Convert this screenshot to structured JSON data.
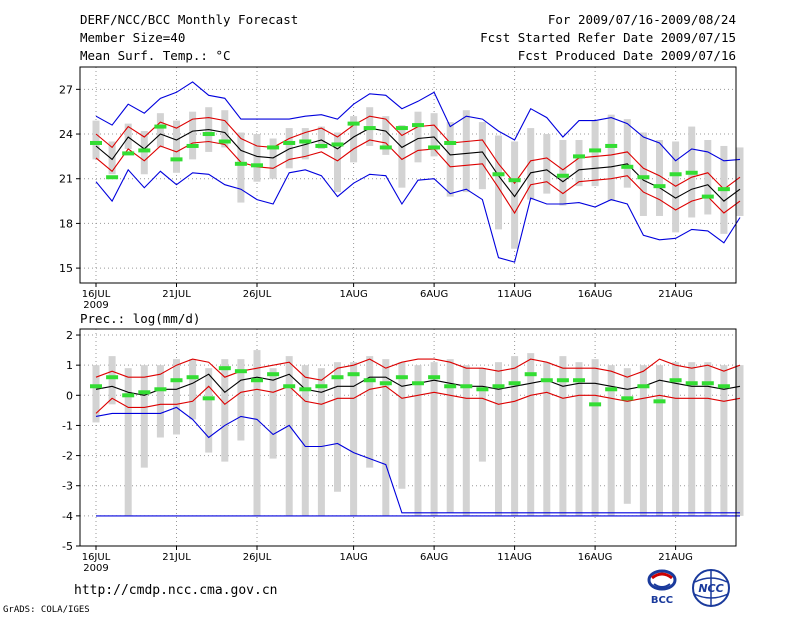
{
  "header": {
    "title": "DERF/NCC/BCC Monthly Forecast",
    "member_size": "Member Size=40",
    "variable": "Mean Surf. Temp.: °C",
    "for_period": "For 2009/07/16-2009/08/24",
    "started": "Fcst Started Refer Date 2009/07/15",
    "produced": "Fcst Produced Date 2009/07/16"
  },
  "footer": {
    "url": "http://cmdp.ncc.cma.gov.cn",
    "credit": "GrADS: COLA/IGES",
    "logo_left_text": "BCC",
    "logo_right_text": "NCC"
  },
  "colors": {
    "box": "#d3d3d3",
    "obs": "#33dd33",
    "mean": "#000000",
    "sd_band": "#dd0000",
    "extreme": "#0000dd",
    "grid": "#999999"
  },
  "chart_data": [
    {
      "type": "line",
      "title": "Mean Surf. Temp.: °C",
      "ylim": [
        14,
        28.5
      ],
      "yticks": [
        15,
        18,
        21,
        24,
        27
      ],
      "xlim": [
        0,
        40
      ],
      "x_ticks": [
        {
          "x": 0,
          "label": "16JUL",
          "sub": "2009"
        },
        {
          "x": 5,
          "label": "21JUL",
          "sub": ""
        },
        {
          "x": 10,
          "label": "26JUL",
          "sub": ""
        },
        {
          "x": 16,
          "label": "1AUG",
          "sub": ""
        },
        {
          "x": 21,
          "label": "6AUG",
          "sub": ""
        },
        {
          "x": 26,
          "label": "11AUG",
          "sub": ""
        },
        {
          "x": 31,
          "label": "16AUG",
          "sub": ""
        },
        {
          "x": 36,
          "label": "21AUG",
          "sub": ""
        }
      ],
      "series": [
        {
          "name": "ensemble mean",
          "values": [
            23.2,
            22.3,
            23.8,
            23.0,
            24.0,
            23.6,
            24.2,
            24.3,
            24.1,
            22.9,
            22.5,
            22.4,
            23.0,
            23.3,
            23.6,
            23.0,
            23.8,
            24.4,
            24.2,
            23.1,
            23.7,
            23.8,
            22.6,
            22.7,
            22.8,
            21.2,
            19.8,
            21.4,
            21.6,
            20.8,
            21.6,
            21.7,
            21.8,
            22.0,
            20.9,
            20.4,
            19.7,
            20.3,
            20.6,
            19.5,
            20.3
          ]
        },
        {
          "name": "mean + 1 sd",
          "values": [
            24.0,
            23.1,
            24.5,
            23.8,
            24.8,
            24.4,
            25.0,
            25.1,
            24.9,
            23.7,
            23.2,
            23.1,
            23.7,
            24.1,
            24.4,
            23.8,
            24.6,
            25.2,
            25.0,
            23.9,
            24.5,
            24.6,
            23.4,
            23.5,
            23.6,
            22.0,
            20.7,
            22.2,
            22.4,
            21.6,
            22.4,
            22.5,
            22.6,
            22.8,
            21.7,
            21.2,
            20.5,
            21.1,
            21.4,
            20.3,
            21.1
          ]
        },
        {
          "name": "mean - 1 sd",
          "values": [
            22.4,
            21.5,
            23.0,
            22.2,
            23.2,
            22.8,
            23.4,
            23.5,
            23.3,
            22.1,
            21.8,
            21.7,
            22.3,
            22.5,
            22.8,
            22.2,
            23.0,
            23.6,
            23.4,
            22.3,
            22.9,
            23.0,
            21.8,
            21.9,
            22.0,
            20.4,
            18.7,
            20.6,
            20.8,
            20.0,
            20.8,
            20.9,
            21.0,
            21.2,
            20.1,
            19.6,
            18.9,
            19.5,
            19.8,
            18.7,
            19.5
          ]
        },
        {
          "name": "ensemble max",
          "values": [
            25.2,
            24.6,
            26.0,
            25.4,
            26.4,
            26.8,
            27.5,
            26.6,
            26.4,
            25.0,
            25.0,
            25.0,
            25.0,
            25.2,
            25.3,
            25.0,
            26.0,
            26.7,
            26.6,
            25.7,
            26.2,
            26.8,
            24.5,
            25.2,
            25.0,
            24.2,
            23.6,
            25.7,
            25.1,
            23.8,
            24.9,
            24.9,
            25.1,
            24.7,
            23.8,
            23.4,
            22.2,
            23.0,
            22.8,
            22.2,
            22.3
          ]
        },
        {
          "name": "ensemble min",
          "values": [
            20.8,
            19.5,
            21.6,
            20.4,
            21.5,
            20.6,
            21.4,
            21.3,
            20.6,
            20.3,
            19.6,
            19.3,
            21.4,
            21.6,
            21.2,
            19.8,
            20.7,
            21.3,
            21.2,
            19.3,
            20.9,
            21.0,
            20.0,
            20.3,
            19.6,
            15.7,
            15.4,
            19.7,
            19.3,
            19.3,
            19.4,
            19.1,
            19.6,
            19.3,
            17.2,
            16.9,
            17.0,
            17.6,
            17.5,
            16.7,
            18.4
          ]
        }
      ],
      "box": {
        "low": [
          22.3,
          21.3,
          23.0,
          21.3,
          23.1,
          21.4,
          22.3,
          22.8,
          23.1,
          19.4,
          20.8,
          21.0,
          21.7,
          22.3,
          23.0,
          20.1,
          22.1,
          23.2,
          22.6,
          20.4,
          22.1,
          22.5,
          19.8,
          20.1,
          20.3,
          17.6,
          16.3,
          19.6,
          20.0,
          19.2,
          20.5,
          20.5,
          19.5,
          20.4,
          18.5,
          18.5,
          17.4,
          18.4,
          18.6,
          17.3,
          18.5
        ],
        "high": [
          24.9,
          23.5,
          24.7,
          24.2,
          25.4,
          24.9,
          25.5,
          25.8,
          25.6,
          24.1,
          24.0,
          23.7,
          24.4,
          24.4,
          24.5,
          24.1,
          25.2,
          25.8,
          25.2,
          24.6,
          25.5,
          25.4,
          24.8,
          25.6,
          24.8,
          23.9,
          23.5,
          24.4,
          24.0,
          23.6,
          23.6,
          24.9,
          25.3,
          25.0,
          24.1,
          23.6,
          23.5,
          24.5,
          23.6,
          23.2,
          23.1
        ]
      },
      "obs": [
        23.4,
        21.1,
        22.7,
        22.9,
        24.5,
        22.3,
        23.2,
        24.0,
        23.5,
        22.0,
        21.9,
        23.1,
        23.4,
        23.5,
        23.2,
        23.3,
        24.7,
        24.4,
        23.1,
        24.4,
        24.6,
        23.1,
        23.4,
        null,
        null,
        21.3,
        20.9,
        null,
        null,
        21.2,
        22.5,
        22.9,
        23.2,
        21.8,
        21.1,
        20.5,
        21.3,
        21.4,
        19.8,
        20.3,
        null
      ],
      "ylabel": "",
      "xlabel": ""
    },
    {
      "type": "line",
      "title": "Prec.: log(mm/d)",
      "ylim": [
        -5,
        2.2
      ],
      "yticks": [
        -5,
        -4,
        -3,
        -2,
        -1,
        0,
        1,
        2
      ],
      "xlim": [
        0,
        40
      ],
      "x_ticks": [
        {
          "x": 0,
          "label": "16JUL",
          "sub": "2009"
        },
        {
          "x": 5,
          "label": "21JUL",
          "sub": ""
        },
        {
          "x": 10,
          "label": "26JUL",
          "sub": ""
        },
        {
          "x": 16,
          "label": "1AUG",
          "sub": ""
        },
        {
          "x": 21,
          "label": "6AUG",
          "sub": ""
        },
        {
          "x": 26,
          "label": "11AUG",
          "sub": ""
        },
        {
          "x": 31,
          "label": "16AUG",
          "sub": ""
        },
        {
          "x": 36,
          "label": "21AUG",
          "sub": ""
        }
      ],
      "series": [
        {
          "name": "ensemble mean",
          "values": [
            0.2,
            0.3,
            0.1,
            0.0,
            0.2,
            0.2,
            0.4,
            0.7,
            0.1,
            0.5,
            0.6,
            0.5,
            0.7,
            0.2,
            0.1,
            0.3,
            0.3,
            0.6,
            0.6,
            0.3,
            0.4,
            0.5,
            0.4,
            0.3,
            0.3,
            0.2,
            0.3,
            0.4,
            0.5,
            0.3,
            0.4,
            0.4,
            0.3,
            0.2,
            0.3,
            0.5,
            0.4,
            0.3,
            0.3,
            0.2,
            0.3
          ]
        },
        {
          "name": "mean + 1 sd",
          "values": [
            0.6,
            0.8,
            0.6,
            0.6,
            0.7,
            1.0,
            1.2,
            1.1,
            0.6,
            0.8,
            0.9,
            1.0,
            1.1,
            0.6,
            0.5,
            0.9,
            1.0,
            1.2,
            0.9,
            1.1,
            1.2,
            1.2,
            1.1,
            0.9,
            0.9,
            0.8,
            0.9,
            1.2,
            1.1,
            0.9,
            0.9,
            0.9,
            0.8,
            0.6,
            0.8,
            1.2,
            1.0,
            0.9,
            1.0,
            0.8,
            1.0
          ]
        },
        {
          "name": "mean - 1 sd",
          "values": [
            -0.6,
            -0.1,
            -0.4,
            -0.4,
            -0.3,
            -0.3,
            -0.2,
            0.3,
            -0.3,
            0.1,
            0.2,
            0.1,
            0.3,
            -0.2,
            -0.3,
            -0.1,
            -0.1,
            0.2,
            0.3,
            -0.1,
            0.0,
            0.1,
            0.0,
            -0.1,
            -0.1,
            -0.3,
            -0.2,
            0.0,
            0.1,
            -0.1,
            0.0,
            0.0,
            -0.1,
            -0.2,
            -0.1,
            0.0,
            -0.1,
            -0.1,
            -0.1,
            -0.2,
            -0.1
          ]
        },
        {
          "name": "ensemble max",
          "values": [
            -0.7,
            -0.6,
            -0.6,
            -0.6,
            -0.6,
            -0.4,
            -0.8,
            -1.4,
            -1.0,
            -0.7,
            -0.8,
            -1.3,
            -1.0,
            -1.7,
            -1.7,
            -1.6,
            -1.9,
            -2.1,
            -2.3,
            -3.9,
            -3.9,
            -3.9,
            -3.9,
            -3.9,
            -3.9,
            -3.9,
            -3.9,
            -3.9,
            -3.9,
            -3.9,
            -3.9,
            -3.9,
            -3.9,
            -3.9,
            -3.9,
            -3.9,
            -3.9,
            -3.9,
            -3.9,
            -3.9,
            -3.9
          ]
        },
        {
          "name": "ensemble min",
          "values": [
            -4.0,
            -4.0,
            -4.0,
            -4.0,
            -4.0,
            -4.0,
            -4.0,
            -4.0,
            -4.0,
            -4.0,
            -4.0,
            -4.0,
            -4.0,
            -4.0,
            -4.0,
            -4.0,
            -4.0,
            -4.0,
            -4.0,
            -4.0,
            -4.0,
            -4.0,
            -4.0,
            -4.0,
            -4.0,
            -4.0,
            -4.0,
            -4.0,
            -4.0,
            -4.0,
            -4.0,
            -4.0,
            -4.0,
            -4.0,
            -4.0,
            -4.0,
            -4.0,
            -4.0,
            -4.0,
            -4.0,
            -4.0
          ]
        }
      ],
      "box": {
        "low": [
          -0.9,
          -0.3,
          -4.0,
          -2.4,
          -1.4,
          -1.3,
          -0.8,
          -1.9,
          -2.2,
          -1.5,
          -4.0,
          -2.1,
          -4.0,
          -4.0,
          -4.0,
          -3.2,
          -4.0,
          -2.4,
          -4.0,
          -3.1,
          -4.0,
          -4.0,
          -3.9,
          -4.0,
          -2.2,
          -4.0,
          -4.0,
          -4.0,
          -4.0,
          -4.0,
          -4.0,
          -4.0,
          -4.0,
          -3.6,
          -4.0,
          -4.0,
          -4.0,
          -4.0,
          -4.0,
          -4.0,
          -4.0
        ],
        "high": [
          1.0,
          1.3,
          0.9,
          1.0,
          1.0,
          1.2,
          1.2,
          0.9,
          1.2,
          1.2,
          1.5,
          0.9,
          1.3,
          1.0,
          0.9,
          1.1,
          1.1,
          1.3,
          1.2,
          1.1,
          1.0,
          1.1,
          1.2,
          1.0,
          0.9,
          1.1,
          1.3,
          1.4,
          1.1,
          1.3,
          1.1,
          1.2,
          1.0,
          0.9,
          1.0,
          1.0,
          1.1,
          1.1,
          1.1,
          1.0,
          1.0
        ]
      },
      "obs": [
        0.3,
        0.6,
        0.0,
        0.1,
        0.2,
        0.5,
        0.6,
        -0.1,
        0.9,
        0.8,
        0.5,
        0.7,
        0.3,
        0.2,
        0.3,
        0.6,
        0.7,
        0.5,
        0.4,
        0.6,
        0.4,
        0.6,
        0.3,
        0.3,
        0.2,
        0.3,
        0.4,
        0.7,
        0.5,
        0.5,
        0.5,
        -0.3,
        0.2,
        -0.1,
        0.3,
        -0.2,
        0.5,
        0.4,
        0.4,
        0.3,
        null
      ]
    }
  ]
}
